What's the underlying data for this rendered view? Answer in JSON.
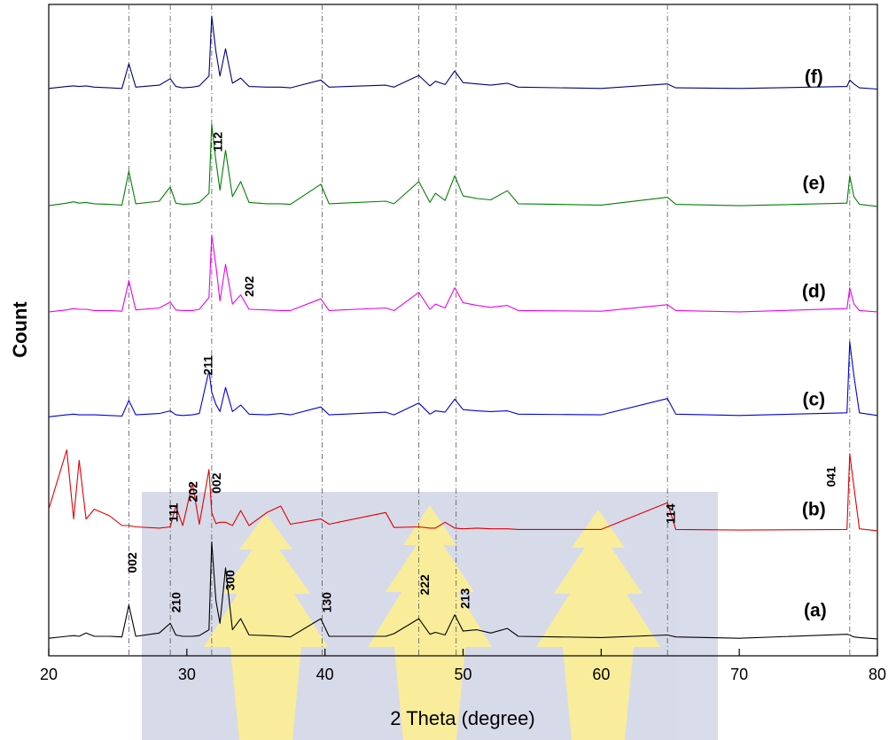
{
  "chart_data": {
    "type": "line",
    "x_label": "2 Theta (degree)",
    "y_label": "Count",
    "xlim": [
      20,
      80
    ],
    "ylim": [
      0,
      100
    ],
    "xticks": [
      20,
      30,
      40,
      50,
      60,
      70,
      80
    ],
    "reference_lines": [
      25.8,
      28.8,
      31.8,
      39.8,
      46.8,
      49.5,
      64.8,
      78
    ],
    "x": [
      20,
      21.3,
      21.8,
      22.2,
      22.7,
      23.3,
      24.4,
      25.3,
      25.8,
      26.3,
      28,
      28.8,
      29.2,
      29.7,
      30.4,
      30.9,
      31.6,
      31.8,
      32.1,
      32.4,
      32.8,
      33.3,
      33.9,
      34.5,
      35.8,
      36.8,
      37.5,
      39.7,
      40.3,
      44.4,
      45,
      46.8,
      47.6,
      48,
      48.7,
      49.4,
      50,
      51,
      52,
      53.2,
      54,
      60,
      64.8,
      65.4,
      70,
      77.8,
      78,
      78.3,
      78.7,
      80
    ],
    "series": [
      {
        "color": "#000000",
        "values": [
          2.7,
          3.0,
          3.1,
          3.0,
          3.5,
          3.0,
          3.0,
          2.9,
          7.8,
          3.0,
          3.5,
          5.0,
          3.2,
          3.0,
          3.0,
          3.1,
          4.0,
          17.5,
          8.5,
          5.0,
          13.5,
          4.0,
          5.7,
          3.2,
          3.1,
          3.0,
          2.9,
          5.7,
          3.0,
          3.0,
          3.4,
          5.7,
          3.3,
          3.6,
          3.2,
          6.3,
          3.8,
          4.0,
          3.5,
          4.2,
          3.0,
          2.8,
          3.2,
          2.9,
          2.7,
          3.3,
          3.2,
          2.9,
          2.8,
          2.6
        ]
      },
      {
        "color": "#e00000",
        "values": [
          22.5,
          31.6,
          21,
          30,
          21,
          22.5,
          21.5,
          20,
          20,
          19.8,
          19.6,
          19.8,
          23,
          20,
          26.5,
          20.2,
          28.6,
          22,
          20.3,
          20.5,
          20.5,
          20,
          22.3,
          20,
          22,
          23,
          20.2,
          21,
          20.2,
          22,
          19.7,
          19.8,
          19.6,
          19.6,
          20.5,
          19.6,
          19.5,
          19.6,
          19.5,
          19.5,
          19.4,
          19.4,
          23.5,
          19.4,
          19.3,
          19.4,
          31,
          26,
          19.5,
          19.2
        ]
      },
      {
        "color": "#0000dd",
        "values": [
          36.7,
          37,
          37.1,
          37,
          37,
          37,
          36.9,
          36.8,
          39.2,
          37,
          37.2,
          37.6,
          37,
          36.9,
          37,
          37.2,
          43.8,
          40.5,
          38.6,
          37.5,
          41.2,
          37.5,
          38.5,
          37.1,
          37,
          37.2,
          37,
          38.2,
          37,
          37.4,
          37,
          38.8,
          37.1,
          37.6,
          37.4,
          39.4,
          37.8,
          37.6,
          37.5,
          37.6,
          37.1,
          37,
          39.5,
          37.1,
          36.9,
          37.3,
          48.2,
          43,
          37.3,
          36.9
        ]
      },
      {
        "color": "#ee00ee",
        "values": [
          52.8,
          53.1,
          53.3,
          53.2,
          53.2,
          53,
          53,
          52.9,
          57.6,
          53.1,
          53.4,
          54.3,
          53.1,
          53,
          53,
          53.2,
          55,
          64.6,
          59.9,
          54.5,
          60.1,
          54,
          55.4,
          53.2,
          53.1,
          53,
          53,
          54.8,
          53,
          53.4,
          53,
          55.8,
          53.2,
          54,
          53.4,
          56.5,
          54.2,
          53.8,
          53.5,
          53.8,
          53,
          52.9,
          53.9,
          53,
          52.8,
          53.3,
          56.5,
          54,
          53,
          52.8
        ]
      },
      {
        "color": "#008000",
        "values": [
          69.1,
          69.5,
          69.7,
          69.5,
          69.6,
          69.4,
          69.3,
          69.2,
          74.4,
          69.4,
          69.8,
          72,
          69.5,
          69.3,
          69.4,
          69.6,
          71,
          81.6,
          76,
          71.5,
          77.6,
          70.5,
          72.8,
          69.6,
          69.4,
          69.4,
          69.3,
          72.4,
          69.4,
          69.8,
          69.4,
          72.8,
          69.6,
          71,
          69.9,
          73.7,
          70.6,
          70.2,
          70,
          71.4,
          69.4,
          69.2,
          70.4,
          69.3,
          69.1,
          69.5,
          73.7,
          70.5,
          69.3,
          69
        ]
      },
      {
        "color": "#000080",
        "values": [
          87.1,
          87.4,
          87.5,
          87.4,
          87.5,
          87.3,
          87.2,
          87.1,
          90.9,
          87.3,
          87.6,
          88.6,
          87.4,
          87.2,
          87.3,
          87.5,
          89,
          98.2,
          92.8,
          89,
          93.2,
          87.9,
          88.7,
          87.4,
          87.3,
          87.3,
          87.2,
          88.4,
          87.3,
          87.6,
          87.3,
          89.1,
          87.5,
          88.2,
          87.7,
          89.8,
          88,
          87.8,
          87.6,
          87.9,
          87.3,
          87.1,
          87.8,
          87.2,
          87.1,
          87.4,
          88.4,
          87.8,
          87.2,
          87
        ]
      }
    ],
    "series_labels": [
      {
        "text": "(a)",
        "x": 75.5,
        "y": 6.8
      },
      {
        "text": "(b)",
        "x": 75.4,
        "y": 22.3
      },
      {
        "text": "(c)",
        "x": 75.4,
        "y": 39.2
      },
      {
        "text": "(d)",
        "x": 75.4,
        "y": 55.8
      },
      {
        "text": "(e)",
        "x": 75.4,
        "y": 72.4
      },
      {
        "text": "(f)",
        "x": 75.4,
        "y": 88.7
      }
    ],
    "peak_labels": [
      {
        "text": "002",
        "x": 26.1,
        "y": 14.3
      },
      {
        "text": "210",
        "x": 29.3,
        "y": 8.2
      },
      {
        "text": "300",
        "x": 33.2,
        "y": 11.6
      },
      {
        "text": "130",
        "x": 40.2,
        "y": 8.2
      },
      {
        "text": "222",
        "x": 47.3,
        "y": 10.9
      },
      {
        "text": "213",
        "x": 50.2,
        "y": 8.8
      },
      {
        "text": "111",
        "x": 29.1,
        "y": 22
      },
      {
        "text": "202",
        "x": 30.5,
        "y": 25.2
      },
      {
        "text": "002",
        "x": 32.2,
        "y": 26.5
      },
      {
        "text": "114",
        "x": 65.1,
        "y": 21.8
      },
      {
        "text": "041",
        "x": 76.7,
        "y": 27.5
      },
      {
        "text": "211",
        "x": 31.6,
        "y": 44.6
      },
      {
        "text": "202",
        "x": 34.6,
        "y": 56.7
      },
      {
        "text": "112",
        "x": 32.3,
        "y": 78.9
      }
    ]
  }
}
